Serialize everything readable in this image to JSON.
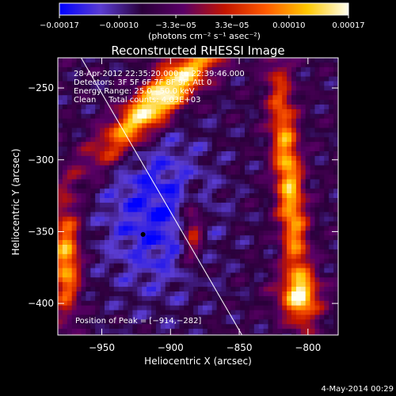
{
  "chart_data": {
    "type": "heatmap",
    "title": "Reconstructed RHESSI Image",
    "xlabel": "Heliocentric X (arcsec)",
    "ylabel": "Heliocentric Y (arcsec)",
    "xlim": [
      -982,
      -778
    ],
    "ylim": [
      -422,
      -229
    ],
    "x_ticks": [
      -950,
      -900,
      -850,
      -800
    ],
    "x_tick_labels": [
      "−950",
      "−900",
      "−850",
      "−800"
    ],
    "y_ticks": [
      -250,
      -300,
      -350,
      -400
    ],
    "y_tick_labels": [
      "−250",
      "−300",
      "−350",
      "−400"
    ],
    "colorbar": {
      "range": [
        -0.00017,
        0.00017
      ],
      "tick_values": [
        -0.00017,
        -0.0001,
        -3.3e-05,
        3.3e-05,
        0.0001,
        0.00017
      ],
      "tick_labels": [
        "−0.00017",
        "−0.00010",
        "−3.3e−05",
        "3.3e−05",
        "0.00010",
        "0.00017"
      ],
      "units": "(photons cm⁻² s⁻¹ asec⁻²)",
      "colors": [
        "#0000ff",
        "#5a3cd2",
        "#2a003a",
        "#5a0066",
        "#c21400",
        "#ff5a00",
        "#ffc800",
        "#fffff0"
      ]
    },
    "annotations": [
      "28-Apr-2012 22:35:20.000 to 22:39:46.000",
      "Detectors: 3F 5F 6F 7F 8F 9F, Att 0",
      "Energy Range: 25.0 - 50.0 keV",
      "Clean     Total counts: 4.03E+03"
    ],
    "peak_label": "Position of Peak = [−914,−282]",
    "limb_line": [
      [
        -965,
        -229
      ],
      [
        -848,
        -422
      ]
    ],
    "min_marker": [
      -920,
      -352
    ],
    "grid": false,
    "timestamp": "4-May-2014 00:29"
  }
}
